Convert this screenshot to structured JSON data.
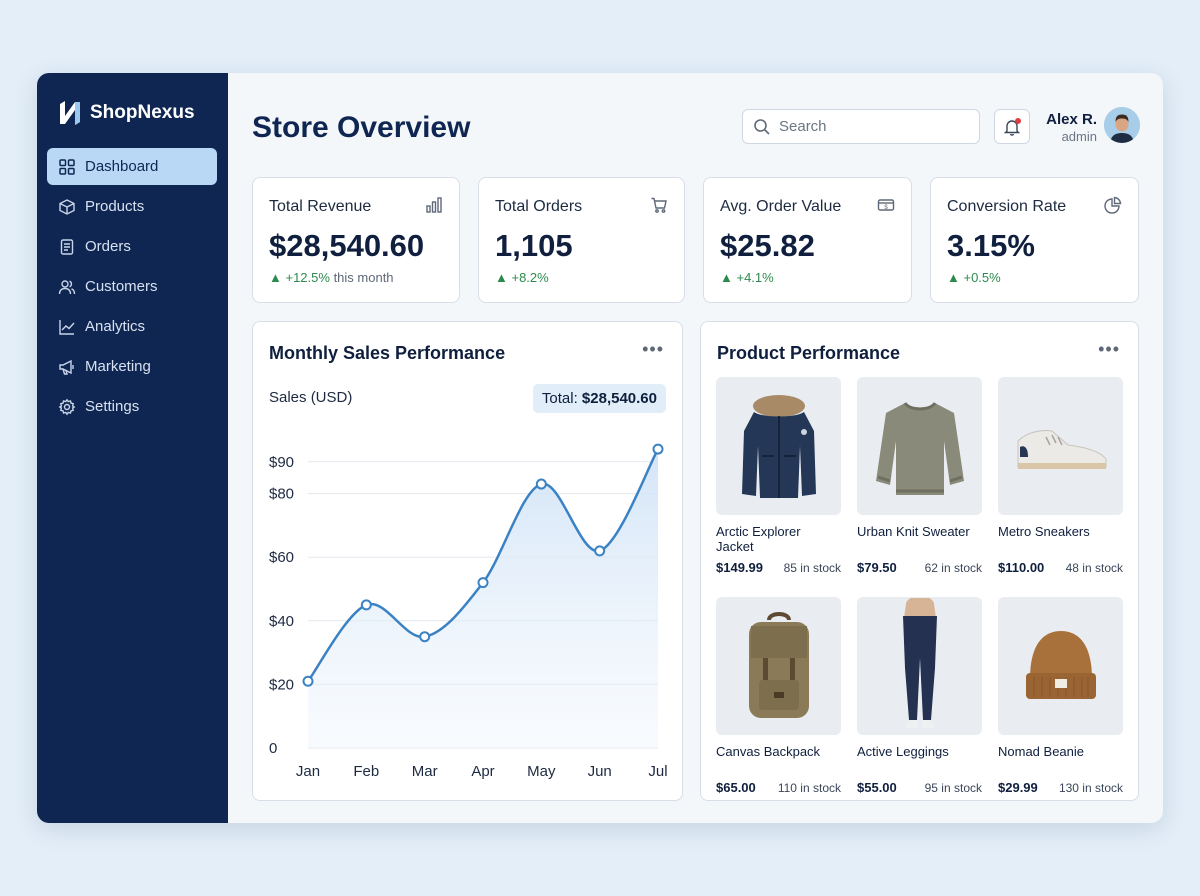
{
  "brand": {
    "name": "ShopNexus"
  },
  "sidebar": {
    "items": [
      {
        "label": "Dashboard",
        "icon": "grid-icon",
        "active": true
      },
      {
        "label": "Products",
        "icon": "box-icon"
      },
      {
        "label": "Orders",
        "icon": "document-icon"
      },
      {
        "label": "Customers",
        "icon": "users-icon"
      },
      {
        "label": "Analytics",
        "icon": "line-chart-icon"
      },
      {
        "label": "Marketing",
        "icon": "megaphone-icon"
      },
      {
        "label": "Settings",
        "icon": "gear-icon"
      }
    ]
  },
  "header": {
    "title": "Store Overview",
    "search_placeholder": "Search",
    "user": {
      "name": "Alex R.",
      "role": "admin"
    }
  },
  "stats": [
    {
      "label": "Total Revenue",
      "value": "$28,540.60",
      "change": "+12.5%",
      "note": "this month",
      "icon": "bar-chart-icon"
    },
    {
      "label": "Total Orders",
      "value": "1,105",
      "change": "+8.2%",
      "note": "",
      "icon": "cart-icon"
    },
    {
      "label": "Avg. Order Value",
      "value": "$25.82",
      "change": "+4.1%",
      "note": "",
      "icon": "cash-icon"
    },
    {
      "label": "Conversion Rate",
      "value": "3.15%",
      "change": "+0.5%",
      "note": "",
      "icon": "pie-chart-icon"
    }
  ],
  "sales_panel": {
    "title": "Monthly Sales Performance",
    "more": "•••",
    "total_label": "Total:",
    "total_value": "$28,540.60"
  },
  "chart_data": {
    "type": "line",
    "title": "Monthly Sales Performance",
    "ylabel": "Sales (USD)",
    "xlabel": "",
    "categories": [
      "Jan",
      "Feb",
      "Mar",
      "Apr",
      "May",
      "Jun",
      "Jul"
    ],
    "values": [
      21,
      45,
      35,
      52,
      83,
      62,
      94
    ],
    "ylim": [
      0,
      100
    ],
    "yticks": [
      0,
      20,
      40,
      60,
      80,
      90
    ],
    "ytick_labels": [
      "0",
      "$20",
      "$40",
      "$60",
      "$80",
      "$90"
    ],
    "grid": true,
    "area_fill": true,
    "line_color": "#3b82c4"
  },
  "products_panel": {
    "title": "Product Performance",
    "more": "•••",
    "items": [
      {
        "name": "Arctic Explorer Jacket",
        "price": "$149.99",
        "stock": "85 in stock",
        "icon": "jacket-icon"
      },
      {
        "name": "Urban Knit Sweater",
        "price": "$79.50",
        "stock": "62 in stock",
        "icon": "sweater-icon"
      },
      {
        "name": "Metro Sneakers",
        "price": "$110.00",
        "stock": "48 in stock",
        "icon": "sneaker-icon"
      },
      {
        "name": "Canvas Backpack",
        "price": "$65.00",
        "stock": "110 in stock",
        "icon": "backpack-icon"
      },
      {
        "name": "Active Leggings",
        "price": "$55.00",
        "stock": "95 in stock",
        "icon": "leggings-icon"
      },
      {
        "name": "Nomad Beanie",
        "price": "$29.99",
        "stock": "130 in stock",
        "icon": "beanie-icon"
      }
    ]
  },
  "colors": {
    "sidebar_bg": "#0f2652",
    "active_nav": "#b8d8f6",
    "positive": "#2d8a4e",
    "accent": "#3b82c4"
  }
}
